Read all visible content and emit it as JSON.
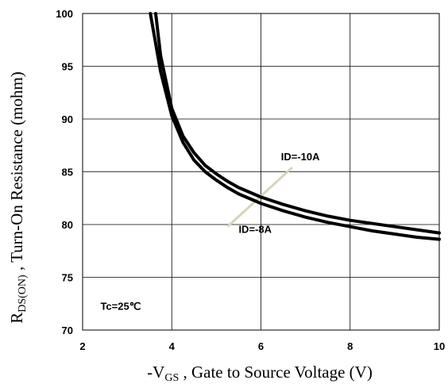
{
  "chart_data": {
    "type": "line",
    "xlabel": {
      "prefix": "-V",
      "sub": "GS",
      "suffix": " , Gate to Source Voltage (V)"
    },
    "ylabel": {
      "prefix": "R",
      "sub": "DS(ON)",
      "suffix": " , Turn-On Resistance (mohm)"
    },
    "xlim": [
      2,
      10
    ],
    "ylim": [
      70,
      100
    ],
    "xticks": [
      "2",
      "4",
      "6",
      "8",
      "10"
    ],
    "yticks": [
      "70",
      "75",
      "80",
      "85",
      "90",
      "95",
      "100"
    ],
    "grid": true,
    "series": [
      {
        "name": "ID=-10A",
        "x": [
          3.64,
          3.75,
          4.0,
          4.25,
          4.5,
          4.75,
          5.0,
          5.25,
          5.5,
          6.0,
          6.5,
          7.0,
          7.5,
          8.0,
          8.5,
          9.0,
          9.5,
          10.0
        ],
        "y": [
          100.0,
          96.0,
          91.0,
          88.4,
          86.8,
          85.6,
          84.8,
          84.1,
          83.5,
          82.6,
          81.9,
          81.3,
          80.8,
          80.4,
          80.1,
          79.8,
          79.5,
          79.2
        ]
      },
      {
        "name": "ID=-8A",
        "x": [
          3.52,
          3.75,
          4.0,
          4.25,
          4.5,
          4.75,
          5.0,
          5.25,
          5.5,
          6.0,
          6.5,
          7.0,
          7.5,
          8.0,
          8.5,
          9.0,
          9.5,
          10.0
        ],
        "y": [
          100.0,
          94.5,
          90.3,
          87.8,
          86.1,
          85.0,
          84.2,
          83.5,
          82.9,
          82.0,
          81.3,
          80.7,
          80.2,
          79.8,
          79.4,
          79.1,
          78.8,
          78.6
        ]
      }
    ],
    "annotations": [
      {
        "text": "ID=-10A",
        "x": 6.45,
        "y": 86.1
      },
      {
        "text": "ID=-8A",
        "x": 5.5,
        "y": 79.2
      },
      {
        "text": "Tc=25℃",
        "x": 2.4,
        "y": 71.9
      }
    ]
  }
}
